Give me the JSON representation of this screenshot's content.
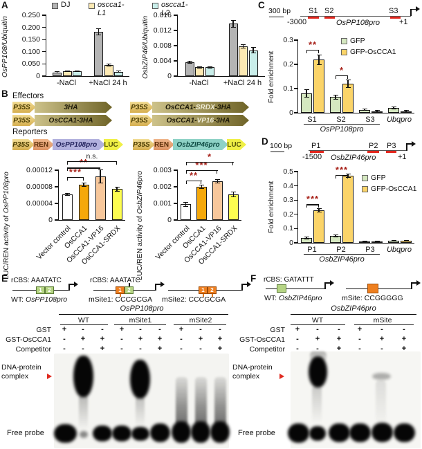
{
  "panels": {
    "a": {
      "label": "A"
    },
    "b": {
      "label": "B",
      "effectors_title": "Effectors",
      "reporters_title": "Reporters"
    },
    "c": {
      "label": "C",
      "scale": "300 bp",
      "sites": [
        "S1",
        "S2",
        "S3"
      ],
      "start": "-3000",
      "end": "+1",
      "promoter": "OsPP108pro"
    },
    "d": {
      "label": "D",
      "scale": "100 bp",
      "sites": [
        "P1",
        "P2",
        "P3"
      ],
      "start": "-1500",
      "end": "+1",
      "promoter": "OsbZIP46pro"
    },
    "e": {
      "label": "E"
    },
    "f": {
      "label": "F"
    }
  },
  "legend_a": [
    {
      "label": "DJ",
      "color": "#b4b4b4",
      "italic": false
    },
    {
      "label": "oscca1-L1",
      "color": "#fce9b3",
      "italic": true
    },
    {
      "label": "oscca1-L2",
      "color": "#c9eeea",
      "italic": true
    }
  ],
  "effectors": {
    "p35s": "P35S",
    "e1": "3HA",
    "e2_pre": "OsCCA1-",
    "e2_mid": "SRDX",
    "e2_post": "-3HA",
    "e3": "OsCCA1-3HA",
    "e4_pre": "OsCCA1-",
    "e4_mid": "VP16",
    "e4_post": "-3HA"
  },
  "reporters": {
    "p35s": "P35S",
    "ren": "REN",
    "luc": "LUC",
    "r1_promoter": "OsPP108pro",
    "r2_promoter": "OsbZIP46pro"
  },
  "emsa_e": {
    "d1_rcbs": "rCBS: AAATATC",
    "d1_label_prefix": "WT: ",
    "d1_label_italic": "OsPP108pro",
    "d2_rcbs": "rCBS: AAATATC",
    "d2_label": "mSite1: CCCGCGA",
    "d3_label": "mSite2: CCCGCGA",
    "box1": "1",
    "box2": "2",
    "gel_title": "OsPP108pro",
    "groups": [
      "WT",
      "mSite1",
      "mSite2"
    ],
    "rows": [
      {
        "label": "GST",
        "values": [
          "+",
          "-",
          "-",
          "+",
          "-",
          "-",
          "+",
          "-",
          "-"
        ]
      },
      {
        "label": "GST-OsCCA1",
        "values": [
          "-",
          "+",
          "+",
          "-",
          "+",
          "+",
          "-",
          "+",
          "+"
        ]
      },
      {
        "label": "Competitor",
        "values": [
          "-",
          "-",
          "+",
          "-",
          "-",
          "+",
          "-",
          "-",
          "+"
        ]
      }
    ],
    "complex_label_1": "DNA-protein",
    "complex_label_2": "complex",
    "free_label": "Free probe"
  },
  "emsa_f": {
    "d1_rcbs": "rCBS: GATATTT",
    "d1_label_prefix": "WT: ",
    "d1_label_italic": "OsbZIP46pro",
    "d2_label": "mSite: CCGGGGG",
    "gel_title": "OsbZIP46pro",
    "groups": [
      "WT",
      "mSite"
    ],
    "rows": [
      {
        "label": "GST",
        "values": [
          "+",
          "-",
          "-",
          "+",
          "-",
          "-"
        ]
      },
      {
        "label": "GST-OsCCA1",
        "values": [
          "-",
          "+",
          "+",
          "-",
          "+",
          "+"
        ]
      },
      {
        "label": "Competitor",
        "values": [
          "-",
          "-",
          "+",
          "-",
          "-",
          "+"
        ]
      }
    ],
    "complex_label_1": "DNA-protein",
    "complex_label_2": "complex",
    "free_label": "Free probe"
  },
  "chart_data": [
    {
      "id": "a_pp108",
      "type": "bar",
      "ylabel_italic": "OsPP108/Ubiquitin",
      "categories": [
        "-NaCl",
        "+NaCl 24 h"
      ],
      "ylim": [
        0,
        0.25
      ],
      "yticks": [
        {
          "v": 0,
          "l": "0"
        },
        {
          "v": 0.05,
          "l": "0.050"
        },
        {
          "v": 0.1,
          "l": "0.100"
        },
        {
          "v": 0.15,
          "l": "0.150"
        },
        {
          "v": 0.2,
          "l": "0.200"
        },
        {
          "v": 0.25,
          "l": "0.250"
        }
      ],
      "series": [
        {
          "name": "DJ",
          "color": "#b4b4b4",
          "values": [
            0.015,
            0.183
          ],
          "err": [
            0.003,
            0.013
          ]
        },
        {
          "name": "oscca1-L1",
          "color": "#fce9b3",
          "values": [
            0.02,
            0.045
          ],
          "err": [
            0.002,
            0.004
          ]
        },
        {
          "name": "oscca1-L2",
          "color": "#c9eeea",
          "values": [
            0.02,
            0.018
          ],
          "err": [
            0.002,
            0.003
          ]
        }
      ]
    },
    {
      "id": "a_bzip46",
      "type": "bar",
      "ylabel_italic": "OsbZIP46/Ubiquitin",
      "categories": [
        "-NaCl",
        "+NaCl 24 h"
      ],
      "ylim": [
        0,
        0.016
      ],
      "yticks": [
        {
          "v": 0,
          "l": "0"
        },
        {
          "v": 0.004,
          "l": "0.004"
        },
        {
          "v": 0.008,
          "l": "0.008"
        },
        {
          "v": 0.012,
          "l": "0.012"
        },
        {
          "v": 0.016,
          "l": "0.016"
        }
      ],
      "series": [
        {
          "name": "DJ",
          "color": "#b4b4b4",
          "values": [
            0.0036,
            0.0138
          ],
          "err": [
            0.0003,
            0.0009
          ]
        },
        {
          "name": "oscca1-L1",
          "color": "#fce9b3",
          "values": [
            0.0023,
            0.0078
          ],
          "err": [
            0.0002,
            0.0004
          ]
        },
        {
          "name": "oscca1-L2",
          "color": "#c9eeea",
          "values": [
            0.0023,
            0.0068
          ],
          "err": [
            0.0002,
            0.0007
          ]
        }
      ]
    },
    {
      "id": "b_pp108",
      "type": "bar",
      "ylabel": "LUC/REN activity of ",
      "ylabel_italic": "OsPP108pro",
      "categories": [
        "Vector control",
        "OsCCA1",
        "OsCCA1-VP16",
        "OsCCA1-SRDX"
      ],
      "values": [
        6.2e-05,
        8.5e-05,
        0.000105,
        7.5e-05
      ],
      "err": [
        2e-06,
        4e-06,
        1.6e-05,
        5e-06
      ],
      "colors": [
        "#ffffff",
        "#f5a80a",
        "#f7c79b",
        "#fdfd50"
      ],
      "ylim": [
        0,
        0.00012
      ],
      "yticks": [
        {
          "v": 0,
          "l": "0"
        },
        {
          "v": 4e-05,
          "l": "0.00004"
        },
        {
          "v": 8e-05,
          "l": "0.00008"
        },
        {
          "v": 0.00012,
          "l": "0.00012"
        }
      ],
      "sig": [
        {
          "from": 0,
          "to": 1,
          "label": "***",
          "y": 0.000103,
          "color": "#a8231b"
        },
        {
          "from": 0,
          "to": 2,
          "label": "**",
          "y": 0.000126,
          "color": "#a8231b"
        },
        {
          "from": 0,
          "to": 3,
          "label": "n.s.",
          "y": 0.000142,
          "color": "#222222"
        }
      ]
    },
    {
      "id": "b_bzip46",
      "type": "bar",
      "ylabel": "LUC/REN activity of ",
      "ylabel_italic": "OsbZIP46pro",
      "categories": [
        "Vector control",
        "OsCCA1",
        "OsCCA1-VP16",
        "OsCCA1-SRDX"
      ],
      "values": [
        0.00095,
        0.002,
        0.00235,
        0.00155
      ],
      "err": [
        0.00012,
        0.0001,
        0.0001,
        0.00015
      ],
      "colors": [
        "#ffffff",
        "#f5a80a",
        "#f7c79b",
        "#fdfd50"
      ],
      "ylim": [
        0,
        0.003
      ],
      "yticks": [
        {
          "v": 0,
          "l": "0"
        },
        {
          "v": 0.001,
          "l": "0.001"
        },
        {
          "v": 0.002,
          "l": "0.002"
        },
        {
          "v": 0.003,
          "l": "0.003"
        }
      ],
      "sig": [
        {
          "from": 0,
          "to": 1,
          "label": "**",
          "y": 0.00238,
          "color": "#a8231b"
        },
        {
          "from": 0,
          "to": 2,
          "label": "***",
          "y": 0.00302,
          "color": "#a8231b"
        },
        {
          "from": 0,
          "to": 3,
          "label": "*",
          "y": 0.0035,
          "color": "#a8231b"
        }
      ]
    },
    {
      "id": "c_chip",
      "type": "bar",
      "ylabel": "Fold enrichment",
      "categories": [
        "S1",
        "S2",
        "S3",
        "Ubqpro"
      ],
      "cat_italic": [
        false,
        false,
        false,
        true
      ],
      "group_label": "OsPP108pro",
      "group_span": [
        0,
        2
      ],
      "ylim": [
        0,
        0.3
      ],
      "yticks": [
        {
          "v": 0,
          "l": "0"
        },
        {
          "v": 0.1,
          "l": "0.1"
        },
        {
          "v": 0.2,
          "l": "0.2"
        },
        {
          "v": 0.3,
          "l": "0.3"
        }
      ],
      "series": [
        {
          "name": "GFP",
          "color": "#d5e8c0",
          "values": [
            0.08,
            0.065,
            0.012,
            0.02
          ],
          "err": [
            0.015,
            0.008,
            0.003,
            0.004
          ]
        },
        {
          "name": "GFP-OsCCA1",
          "color": "#fbd469",
          "values": [
            0.22,
            0.12,
            0.007,
            0.007
          ],
          "err": [
            0.02,
            0.016,
            0.002,
            0.002
          ]
        }
      ],
      "sig": [
        {
          "group": 0,
          "label": "**",
          "y": 0.26,
          "color": "#a8231b"
        },
        {
          "group": 1,
          "label": "*",
          "y": 0.155,
          "color": "#a8231b"
        }
      ]
    },
    {
      "id": "d_chip",
      "type": "bar",
      "ylabel": "Fold enrichment",
      "categories": [
        "P1",
        "P2",
        "P3",
        "Ubqpro"
      ],
      "cat_italic": [
        false,
        false,
        false,
        true
      ],
      "group_label": "OsbZIP46pro",
      "group_span": [
        0,
        2
      ],
      "ylim": [
        0,
        0.5
      ],
      "yticks": [
        {
          "v": 0,
          "l": "0"
        },
        {
          "v": 0.1,
          "l": "0.1"
        },
        {
          "v": 0.2,
          "l": "0.2"
        },
        {
          "v": 0.3,
          "l": "0.3"
        },
        {
          "v": 0.4,
          "l": "0.4"
        },
        {
          "v": 0.5,
          "l": "0.5"
        }
      ],
      "series": [
        {
          "name": "GFP",
          "color": "#d5e8c0",
          "values": [
            0.035,
            0.05,
            0.008,
            0.015
          ],
          "err": [
            0.006,
            0.006,
            0.002,
            0.003
          ]
        },
        {
          "name": "GFP-OsCCA1",
          "color": "#fbd469",
          "values": [
            0.23,
            0.47,
            0.008,
            0.015
          ],
          "err": [
            0.012,
            0.012,
            0.002,
            0.003
          ]
        }
      ],
      "sig": [
        {
          "group": 0,
          "label": "***",
          "y": 0.27,
          "color": "#a8231b"
        },
        {
          "group": 1,
          "label": "***",
          "y": 0.475,
          "color": "#a8231b"
        }
      ]
    }
  ],
  "colors": {
    "red_site_mark": "#e3261d",
    "sig_star": "#a8231b",
    "gel_arrow": "#e02a20"
  }
}
